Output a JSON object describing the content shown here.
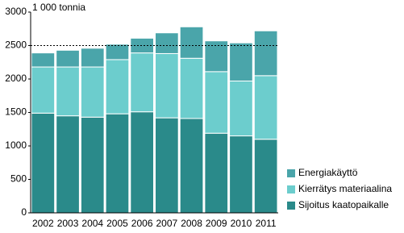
{
  "chart_data": {
    "type": "stacked_bar",
    "y_unit_label": "1 000 tonnia",
    "categories": [
      "2002",
      "2003",
      "2004",
      "2005",
      "2006",
      "2007",
      "2008",
      "2009",
      "2010",
      "2011"
    ],
    "series": [
      {
        "name": "Sijoitus kaatopaikalle",
        "color": "#2a8a8a",
        "values": [
          1490,
          1450,
          1430,
          1480,
          1510,
          1420,
          1410,
          1190,
          1150,
          1100
        ]
      },
      {
        "name": "Kierrätys materiaalina",
        "color": "#6ccdcd",
        "values": [
          690,
          730,
          750,
          810,
          880,
          960,
          900,
          920,
          820,
          950
        ]
      },
      {
        "name": "Energiakäyttö",
        "color": "#4aa5aa",
        "values": [
          210,
          250,
          280,
          230,
          220,
          310,
          470,
          460,
          570,
          670
        ]
      }
    ],
    "ylim": [
      0,
      3000
    ],
    "yticks": [
      0,
      500,
      1000,
      1500,
      2000,
      2500,
      3000
    ],
    "reference_line": 2500,
    "legend": "right"
  }
}
